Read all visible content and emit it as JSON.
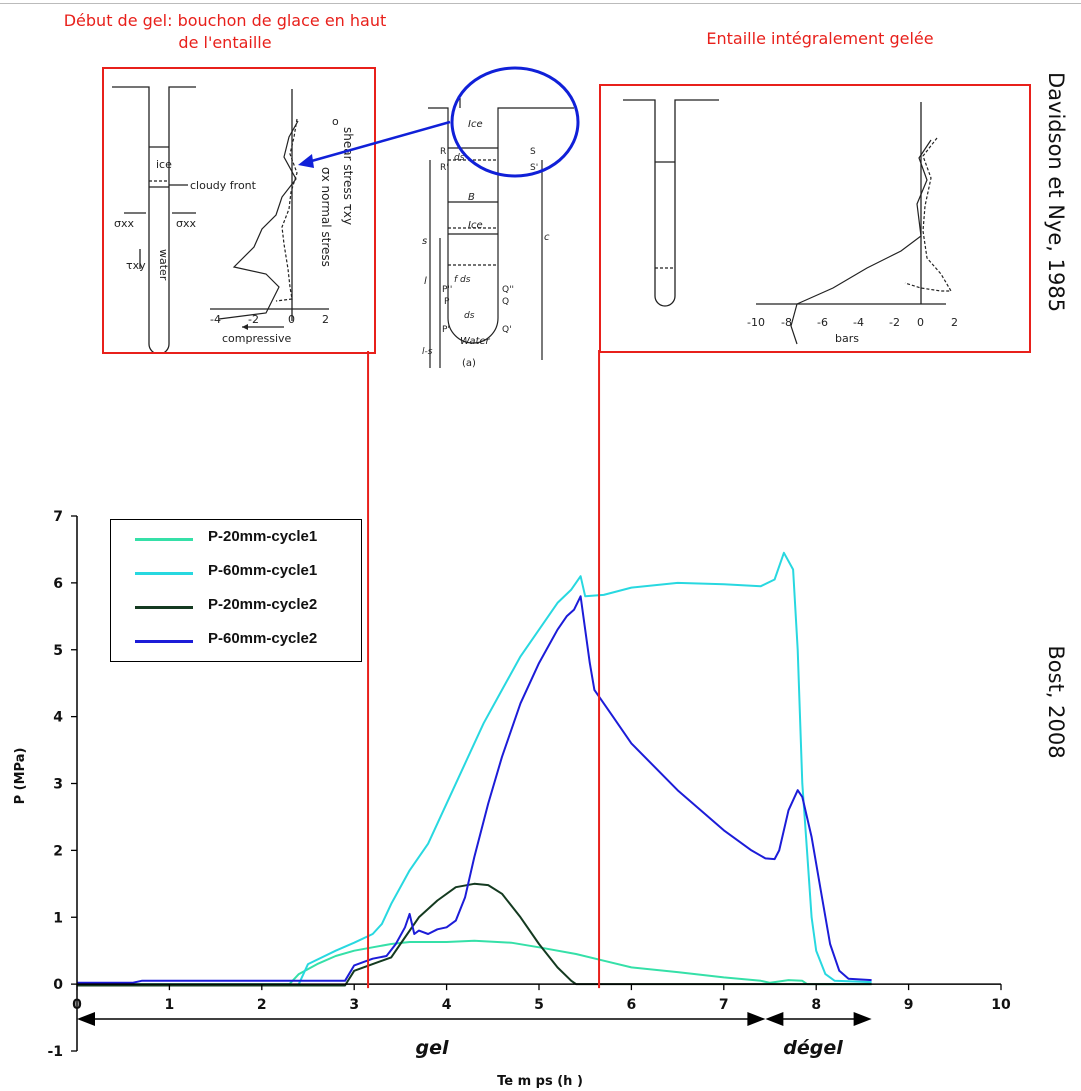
{
  "captions": {
    "left": "Début de gel: bouchon de glace en haut de l'entaille",
    "right": "Entaille intégralement gelée",
    "credit_top": "Davidson et Nye, 1985",
    "credit_bottom": "Bost, 2008"
  },
  "colors": {
    "annotation_red": "#e8201b",
    "arrow_blue": "#1020d8",
    "p20_c1": "#35e0a8",
    "p60_c1": "#28d8e0",
    "p20_c2": "#143a20",
    "p60_c2": "#1c1cd8"
  },
  "figure_left": {
    "labels": {
      "ice": "ice",
      "cloudy_front": "cloudy front",
      "water": "water",
      "sigma_xx_left": "σxx",
      "sigma_xx_right": "σxx",
      "tau_xy": "τxy",
      "shear_legend": "shear stress τxy",
      "normal_legend": "σx normal stress",
      "compressive": "compressive"
    },
    "ticks": [
      "-4",
      "-2",
      "0",
      "2"
    ]
  },
  "figure_center": {
    "labels": {
      "ice_top": "Ice",
      "ice_mid": "Ice",
      "water": "Water",
      "R": "R",
      "S": "S",
      "R_prime": "R'",
      "S_prime": "S'",
      "ds_prime": "ds'",
      "B": "B",
      "s": "s",
      "l": "l",
      "c": "c",
      "P2": "P''",
      "Q2": "Q''",
      "P": "P",
      "Q": "Q",
      "fds": "f ds",
      "ds": "ds",
      "P1": "P'",
      "Q1": "Q'",
      "l_minus_s": "l-s",
      "panel": "(a)"
    }
  },
  "figure_right": {
    "ticks": [
      "-10",
      "-8",
      "-6",
      "-4",
      "-2",
      "0",
      "2"
    ],
    "xlabel": "bars"
  },
  "chart_data": {
    "type": "line",
    "xlabel": "Te m ps (h )",
    "ylabel": "P (MPa)",
    "xlim": [
      0,
      10
    ],
    "ylim": [
      -1,
      7
    ],
    "x_ticks": [
      "0",
      "1",
      "2",
      "3",
      "4",
      "5",
      "6",
      "7",
      "8",
      "9",
      "10"
    ],
    "y_ticks": [
      "-1",
      "0",
      "1",
      "2",
      "3",
      "4",
      "5",
      "6",
      "7"
    ],
    "grid": false,
    "legend_position": "top-left",
    "series": [
      {
        "name": "P-20mm-cycle1",
        "color": "#35e0a8",
        "points": [
          [
            0,
            0.0
          ],
          [
            2.3,
            0.0
          ],
          [
            2.4,
            0.15
          ],
          [
            2.6,
            0.3
          ],
          [
            2.8,
            0.42
          ],
          [
            3.0,
            0.5
          ],
          [
            3.2,
            0.55
          ],
          [
            3.4,
            0.6
          ],
          [
            3.6,
            0.63
          ],
          [
            4.0,
            0.63
          ],
          [
            4.3,
            0.65
          ],
          [
            4.7,
            0.62
          ],
          [
            5.0,
            0.55
          ],
          [
            5.4,
            0.45
          ],
          [
            5.7,
            0.35
          ],
          [
            6.0,
            0.25
          ],
          [
            6.5,
            0.18
          ],
          [
            7.0,
            0.1
          ],
          [
            7.4,
            0.05
          ],
          [
            7.5,
            0.02
          ],
          [
            7.7,
            0.06
          ],
          [
            7.85,
            0.05
          ],
          [
            7.9,
            0.0
          ],
          [
            8.6,
            0.0
          ]
        ]
      },
      {
        "name": "P-60mm-cycle1",
        "color": "#28d8e0",
        "points": [
          [
            2.4,
            0.0
          ],
          [
            2.5,
            0.3
          ],
          [
            2.8,
            0.5
          ],
          [
            3.0,
            0.62
          ],
          [
            3.2,
            0.75
          ],
          [
            3.3,
            0.9
          ],
          [
            3.4,
            1.2
          ],
          [
            3.6,
            1.7
          ],
          [
            3.8,
            2.1
          ],
          [
            4.0,
            2.7
          ],
          [
            4.2,
            3.3
          ],
          [
            4.4,
            3.9
          ],
          [
            4.6,
            4.4
          ],
          [
            4.8,
            4.9
          ],
          [
            5.0,
            5.3
          ],
          [
            5.2,
            5.7
          ],
          [
            5.35,
            5.9
          ],
          [
            5.45,
            6.1
          ],
          [
            5.5,
            5.8
          ],
          [
            5.7,
            5.82
          ],
          [
            6.0,
            5.93
          ],
          [
            6.5,
            6.0
          ],
          [
            7.0,
            5.98
          ],
          [
            7.4,
            5.95
          ],
          [
            7.55,
            6.05
          ],
          [
            7.65,
            6.45
          ],
          [
            7.75,
            6.2
          ],
          [
            7.8,
            5.0
          ],
          [
            7.85,
            3.0
          ],
          [
            7.9,
            2.0
          ],
          [
            7.95,
            1.0
          ],
          [
            8.0,
            0.5
          ],
          [
            8.1,
            0.15
          ],
          [
            8.2,
            0.05
          ],
          [
            8.6,
            0.03
          ]
        ]
      },
      {
        "name": "P-20mm-cycle2",
        "color": "#143a20",
        "points": [
          [
            0,
            -0.02
          ],
          [
            2.9,
            -0.02
          ],
          [
            3.0,
            0.2
          ],
          [
            3.1,
            0.25
          ],
          [
            3.2,
            0.3
          ],
          [
            3.4,
            0.4
          ],
          [
            3.5,
            0.6
          ],
          [
            3.7,
            1.0
          ],
          [
            3.9,
            1.25
          ],
          [
            4.1,
            1.45
          ],
          [
            4.3,
            1.5
          ],
          [
            4.45,
            1.48
          ],
          [
            4.6,
            1.35
          ],
          [
            4.8,
            1.0
          ],
          [
            5.0,
            0.6
          ],
          [
            5.2,
            0.25
          ],
          [
            5.35,
            0.05
          ],
          [
            5.4,
            0.0
          ],
          [
            8.6,
            0.0
          ]
        ]
      },
      {
        "name": "P-60mm-cycle2",
        "color": "#1c1cd8",
        "points": [
          [
            0,
            0.02
          ],
          [
            0.6,
            0.02
          ],
          [
            0.7,
            0.05
          ],
          [
            2.9,
            0.05
          ],
          [
            3.0,
            0.28
          ],
          [
            3.1,
            0.33
          ],
          [
            3.2,
            0.38
          ],
          [
            3.35,
            0.42
          ],
          [
            3.45,
            0.6
          ],
          [
            3.55,
            0.85
          ],
          [
            3.6,
            1.05
          ],
          [
            3.65,
            0.75
          ],
          [
            3.7,
            0.8
          ],
          [
            3.8,
            0.75
          ],
          [
            3.9,
            0.82
          ],
          [
            4.0,
            0.85
          ],
          [
            4.1,
            0.95
          ],
          [
            4.2,
            1.3
          ],
          [
            4.3,
            1.9
          ],
          [
            4.45,
            2.7
          ],
          [
            4.6,
            3.4
          ],
          [
            4.8,
            4.2
          ],
          [
            5.0,
            4.8
          ],
          [
            5.2,
            5.3
          ],
          [
            5.3,
            5.5
          ],
          [
            5.38,
            5.6
          ],
          [
            5.45,
            5.8
          ],
          [
            5.55,
            4.8
          ],
          [
            5.6,
            4.4
          ],
          [
            5.8,
            4.0
          ],
          [
            6.0,
            3.6
          ],
          [
            6.5,
            2.9
          ],
          [
            7.0,
            2.3
          ],
          [
            7.3,
            2.0
          ],
          [
            7.45,
            1.88
          ],
          [
            7.55,
            1.87
          ],
          [
            7.6,
            2.0
          ],
          [
            7.7,
            2.6
          ],
          [
            7.8,
            2.9
          ],
          [
            7.85,
            2.8
          ],
          [
            7.95,
            2.2
          ],
          [
            8.05,
            1.4
          ],
          [
            8.15,
            0.6
          ],
          [
            8.25,
            0.2
          ],
          [
            8.35,
            0.08
          ],
          [
            8.6,
            0.06
          ]
        ]
      }
    ],
    "phase_labels": {
      "gel": "gel",
      "degel": "dégel"
    },
    "phase_ranges": {
      "gel": [
        0,
        7.45
      ],
      "degel": [
        7.45,
        8.6
      ]
    },
    "markers_x": [
      3.15,
      5.65
    ]
  }
}
